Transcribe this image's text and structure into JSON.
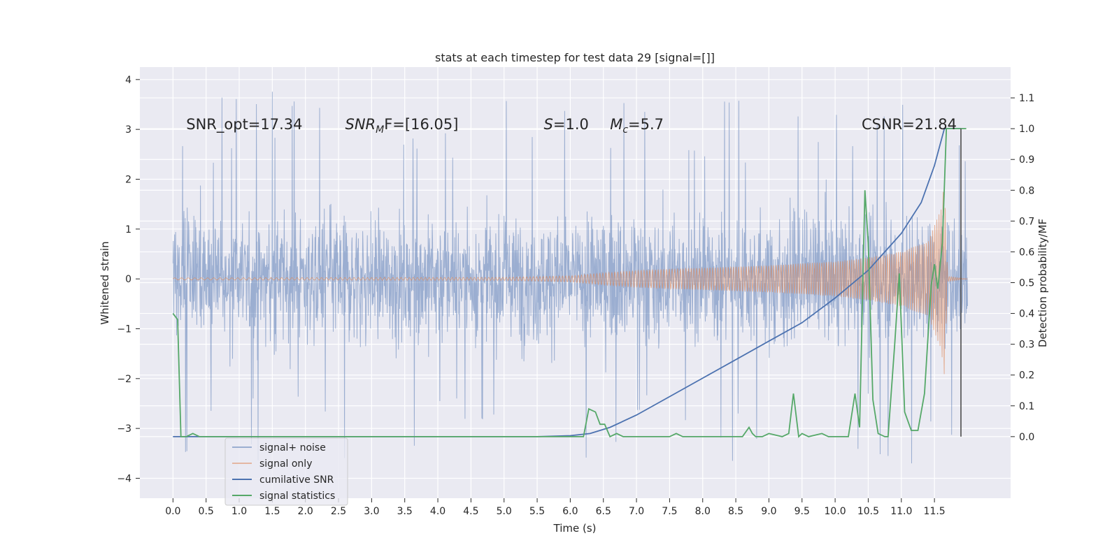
{
  "chart_data": {
    "type": "line",
    "title": "stats at each timestep for test data 29 [signal=[]]",
    "xlabel": "Time (s)",
    "ylabel": "Whitened strain",
    "y2label": "Detection probability/MF",
    "xlim": [
      -0.5,
      12.65
    ],
    "ylim": [
      -4.4,
      4.25
    ],
    "y2lim": [
      -0.2,
      1.2
    ],
    "xticks": [
      0.0,
      0.5,
      1.0,
      1.5,
      2.0,
      2.5,
      3.0,
      3.5,
      4.0,
      4.5,
      5.0,
      5.5,
      6.0,
      6.5,
      7.0,
      7.5,
      8.0,
      8.5,
      9.0,
      9.5,
      10.0,
      10.5,
      11.0,
      11.5
    ],
    "xtick_labels": [
      "0.0",
      "0.5",
      "1.0",
      "1.5",
      "2.0",
      "2.5",
      "3.0",
      "3.5",
      "4.0",
      "4.5",
      "5.0",
      "5.5",
      "6.0",
      "6.5",
      "7.0",
      "7.5",
      "8.0",
      "8.5",
      "9.0",
      "9.5",
      "10.0",
      "10.5",
      "11.0",
      "11.5"
    ],
    "yticks": [
      -4,
      -3,
      -2,
      -1,
      0,
      1,
      2,
      3,
      4
    ],
    "ytick_labels": [
      "−4",
      "−3",
      "−2",
      "−1",
      "0",
      "1",
      "2",
      "3",
      "4"
    ],
    "y2ticks": [
      0.0,
      0.1,
      0.2,
      0.3,
      0.4,
      0.5,
      0.6,
      0.7,
      0.8,
      0.9,
      1.0,
      1.1
    ],
    "y2tick_labels": [
      "0.0",
      "0.1",
      "0.2",
      "0.3",
      "0.4",
      "0.5",
      "0.6",
      "0.7",
      "0.8",
      "0.9",
      "1.0",
      "1.1"
    ],
    "grid": true,
    "legend_position": "lower-left",
    "series": [
      {
        "name": "signal+ noise",
        "color": "#4c72b0",
        "axis": "left",
        "description_hint": "noisy whitened strain, roughly within ±1.8 with spikes to ±4",
        "envelope": {
          "typical": 1.75,
          "max_spike": 3.85,
          "min_spike": -4.1
        },
        "x_range": [
          0.0,
          12.0
        ]
      },
      {
        "name": "signal only",
        "color": "#dd8452",
        "axis": "left",
        "x_range": [
          0.0,
          12.0
        ],
        "amplitude_points": [
          [
            0.0,
            0.02
          ],
          [
            5.0,
            0.03
          ],
          [
            6.0,
            0.06
          ],
          [
            6.5,
            0.12
          ],
          [
            7.0,
            0.17
          ],
          [
            7.5,
            0.2
          ],
          [
            8.0,
            0.22
          ],
          [
            9.0,
            0.27
          ],
          [
            10.0,
            0.35
          ],
          [
            10.5,
            0.43
          ],
          [
            11.0,
            0.55
          ],
          [
            11.4,
            0.75
          ],
          [
            11.6,
            1.4
          ],
          [
            11.65,
            2.0
          ],
          [
            11.7,
            0.05
          ],
          [
            12.0,
            0.0
          ]
        ]
      },
      {
        "name": "cumilative SNR",
        "color": "#4c72b0",
        "axis": "right",
        "x": [
          0.0,
          5.5,
          6.0,
          6.3,
          6.6,
          7.0,
          7.5,
          8.0,
          8.5,
          9.0,
          9.5,
          10.0,
          10.5,
          11.0,
          11.3,
          11.5,
          11.65,
          11.8,
          11.9
        ],
        "y": [
          0.0,
          0.0,
          0.003,
          0.01,
          0.03,
          0.07,
          0.13,
          0.19,
          0.25,
          0.31,
          0.37,
          0.45,
          0.54,
          0.66,
          0.76,
          0.88,
          1.0,
          1.0,
          1.0
        ]
      },
      {
        "name": "signal statistics",
        "color": "#55a868",
        "axis": "right",
        "x": [
          0.0,
          0.07,
          0.12,
          0.2,
          0.3,
          0.4,
          0.5,
          1.0,
          6.0,
          6.2,
          6.28,
          6.38,
          6.45,
          6.52,
          6.6,
          6.7,
          6.8,
          6.9,
          7.5,
          7.6,
          7.7,
          8.6,
          8.7,
          8.75,
          8.8,
          8.9,
          9.0,
          9.2,
          9.3,
          9.37,
          9.45,
          9.5,
          9.6,
          9.8,
          9.9,
          10.2,
          10.3,
          10.37,
          10.45,
          10.5,
          10.57,
          10.65,
          10.75,
          10.8,
          10.9,
          10.97,
          11.05,
          11.15,
          11.25,
          11.35,
          11.45,
          11.5,
          11.55,
          11.62,
          11.68,
          11.75,
          11.9,
          11.98
        ],
        "y": [
          0.4,
          0.38,
          0.0,
          0.0,
          0.01,
          0.0,
          0.0,
          0.0,
          0.0,
          0.0,
          0.09,
          0.08,
          0.04,
          0.04,
          0.0,
          0.01,
          0.0,
          0.0,
          0.0,
          0.01,
          0.0,
          0.0,
          0.03,
          0.01,
          0.0,
          0.0,
          0.01,
          0.0,
          0.01,
          0.14,
          0.0,
          0.01,
          0.0,
          0.01,
          0.0,
          0.0,
          0.14,
          0.03,
          0.8,
          0.63,
          0.12,
          0.01,
          0.0,
          0.0,
          0.3,
          0.53,
          0.08,
          0.02,
          0.02,
          0.14,
          0.49,
          0.56,
          0.48,
          0.63,
          1.0,
          1.0,
          1.0,
          1.0
        ]
      }
    ],
    "vline": {
      "x": 11.9,
      "axis": "right",
      "y_from": 0.0,
      "y_to": 1.0,
      "color": "#404040"
    },
    "annotations": [
      {
        "text": "SNR_opt=17.34",
        "x": 0.2,
        "y": 3.0
      },
      {
        "text_main": "SNR",
        "text_sub": "M",
        "text_rest": "F=[16.05]",
        "x": 2.6,
        "y": 3.0,
        "italic_main": true
      },
      {
        "text_main": "S",
        "text_rest": "=1.0",
        "x": 5.6,
        "y": 3.0,
        "italic_main": true
      },
      {
        "text_main": "M",
        "text_sub": "c",
        "text_rest": "=5.7",
        "x": 6.6,
        "y": 3.0,
        "italic_main": true
      },
      {
        "text": "CSNR=21.84",
        "x": 10.4,
        "y": 3.0
      }
    ]
  }
}
